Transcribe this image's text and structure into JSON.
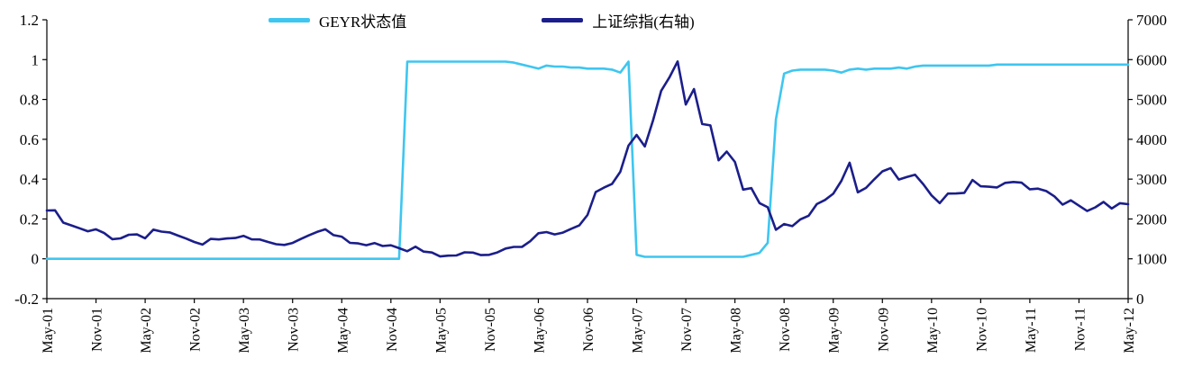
{
  "chart_data": {
    "type": "line",
    "title": "",
    "grid": false,
    "legend_position": "top",
    "colors": {
      "geyr": "#3EC6F0",
      "sse": "#1B1E8A",
      "axis": "#000000",
      "background": "#FFFFFF",
      "text": "#000000"
    },
    "x_count": 133,
    "x_tick_step": 6,
    "x_tick_labels": [
      "May-01",
      "Nov-01",
      "May-02",
      "Nov-02",
      "May-03",
      "Nov-03",
      "May-04",
      "Nov-04",
      "May-05",
      "Nov-05",
      "May-06",
      "Nov-06",
      "May-07",
      "Nov-07",
      "May-08",
      "Nov-08",
      "May-09",
      "Nov-09",
      "May-10",
      "Nov-10",
      "May-11",
      "Nov-11",
      "May-12"
    ],
    "left_axis": {
      "min": -0.2,
      "max": 1.2,
      "tick_labels": [
        "-0.2",
        "0",
        "0.2",
        "0.4",
        "0.6",
        "0.8",
        "1",
        "1.2"
      ]
    },
    "right_axis": {
      "min": 0,
      "max": 7000,
      "tick_labels": [
        "0",
        "1000",
        "2000",
        "3000",
        "4000",
        "5000",
        "6000",
        "7000"
      ]
    },
    "series": [
      {
        "name": "GEYR状态值",
        "axis": "left",
        "color_key": "geyr",
        "values": [
          0,
          0,
          0,
          0,
          0,
          0,
          0,
          0,
          0,
          0,
          0,
          0,
          0,
          0,
          0,
          0,
          0,
          0,
          0,
          0,
          0,
          0,
          0,
          0,
          0,
          0,
          0,
          0,
          0,
          0,
          0,
          0,
          0,
          0,
          0,
          0,
          0,
          0,
          0,
          0,
          0,
          0,
          0,
          0,
          0.99,
          0.99,
          0.99,
          0.99,
          0.99,
          0.99,
          0.99,
          0.99,
          0.99,
          0.99,
          0.99,
          0.99,
          0.99,
          0.985,
          0.975,
          0.965,
          0.955,
          0.97,
          0.965,
          0.965,
          0.96,
          0.96,
          0.955,
          0.955,
          0.955,
          0.95,
          0.935,
          0.99,
          0.02,
          0.01,
          0.01,
          0.01,
          0.01,
          0.01,
          0.01,
          0.01,
          0.01,
          0.01,
          0.01,
          0.01,
          0.01,
          0.01,
          0.02,
          0.03,
          0.08,
          0.7,
          0.93,
          0.945,
          0.95,
          0.95,
          0.95,
          0.95,
          0.945,
          0.935,
          0.95,
          0.955,
          0.95,
          0.955,
          0.955,
          0.955,
          0.96,
          0.955,
          0.965,
          0.97,
          0.97,
          0.97,
          0.97,
          0.97,
          0.97,
          0.97,
          0.97,
          0.97,
          0.975,
          0.975,
          0.975,
          0.975,
          0.975,
          0.975,
          0.975,
          0.975,
          0.975,
          0.975,
          0.975,
          0.975,
          0.975,
          0.975,
          0.975,
          0.975,
          0.975
        ]
      },
      {
        "name": "上证综指(右轴)",
        "axis": "right",
        "color_key": "sse",
        "values": [
          2212,
          2218,
          1907,
          1839,
          1765,
          1691,
          1742,
          1646,
          1492,
          1512,
          1604,
          1613,
          1516,
          1733,
          1683,
          1662,
          1582,
          1508,
          1422,
          1358,
          1500,
          1485,
          1510,
          1521,
          1576,
          1487,
          1486,
          1422,
          1367,
          1348,
          1397,
          1497,
          1590,
          1675,
          1741,
          1595,
          1555,
          1399,
          1386,
          1342,
          1396,
          1320,
          1340,
          1266,
          1191,
          1306,
          1181,
          1159,
          1060,
          1080,
          1083,
          1162,
          1155,
          1092,
          1099,
          1161,
          1258,
          1299,
          1298,
          1440,
          1641,
          1672,
          1612,
          1658,
          1752,
          1837,
          2099,
          2675,
          2786,
          2881,
          3183,
          3841,
          4109,
          3820,
          4471,
          5218,
          5552,
          5955,
          4872,
          5262,
          4383,
          4348,
          3473,
          3693,
          3433,
          2736,
          2776,
          2397,
          2294,
          1729,
          1871,
          1821,
          1991,
          2083,
          2373,
          2478,
          2632,
          2959,
          3412,
          2668,
          2779,
          2995,
          3195,
          3277,
          2989,
          3052,
          3109,
          2871,
          2592,
          2398,
          2638,
          2639,
          2656,
          2979,
          2820,
          2808,
          2790,
          2905,
          2928,
          2911,
          2743,
          2762,
          2701,
          2567,
          2359,
          2468,
          2333,
          2199,
          2292,
          2428,
          2262,
          2396,
          2372
        ]
      }
    ]
  }
}
